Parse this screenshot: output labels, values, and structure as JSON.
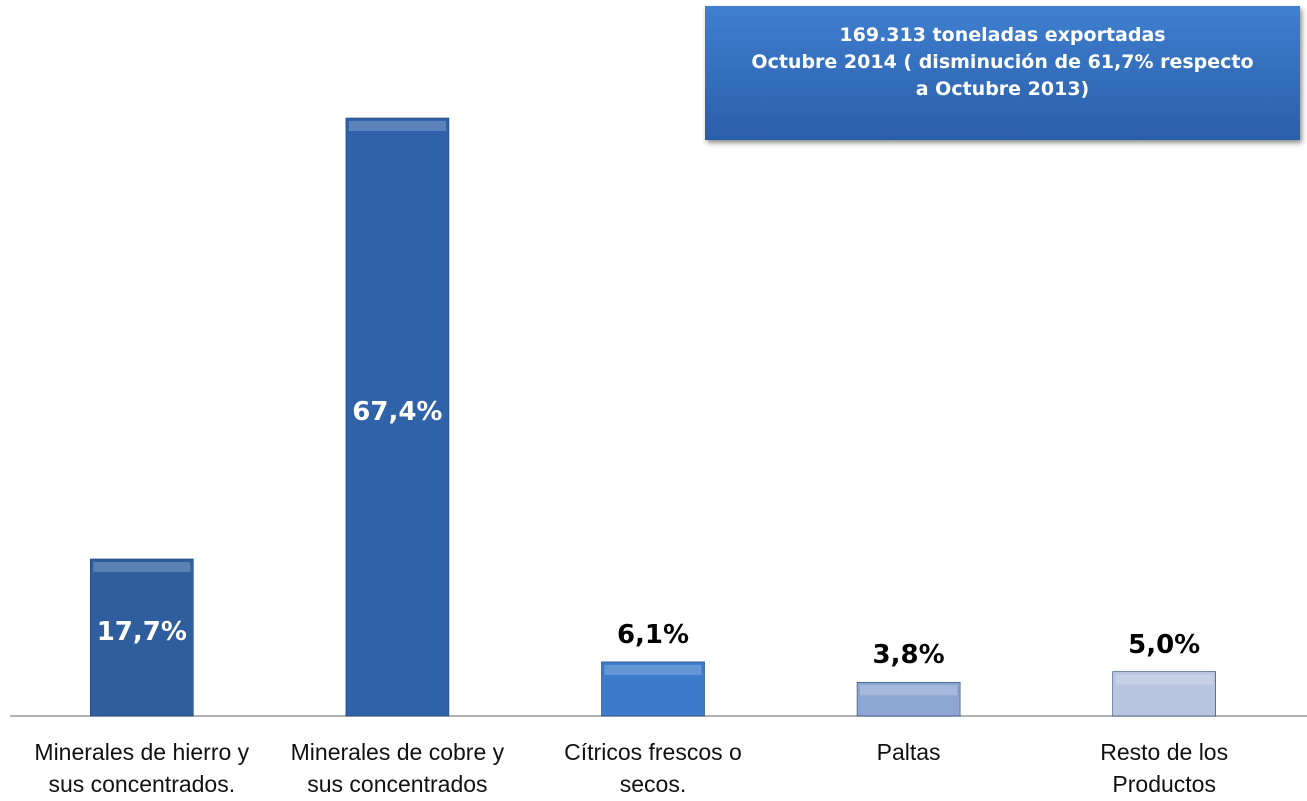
{
  "chart_data": {
    "type": "bar",
    "annotation": [
      "169.313 toneladas exportadas",
      "Octubre 2014  ( disminución de 61,7% respecto",
      "a Octubre 2013)"
    ],
    "categories": [
      "Minerales de hierro y\nsus concentrados.",
      "Minerales de cobre y\nsus concentrados",
      "Cítricos frescos o\nsecos.",
      "Paltas",
      "Resto de los\nProductos"
    ],
    "values": [
      17.7,
      67.4,
      6.1,
      3.8,
      5.0
    ],
    "value_labels": [
      "17,7%",
      "67,4%",
      "6,1%",
      "3,8%",
      "5,0%"
    ],
    "colors": [
      "#2f5e9e",
      "#2f62a8",
      "#3b7bca",
      "#8da6d4",
      "#b7c5de"
    ]
  }
}
